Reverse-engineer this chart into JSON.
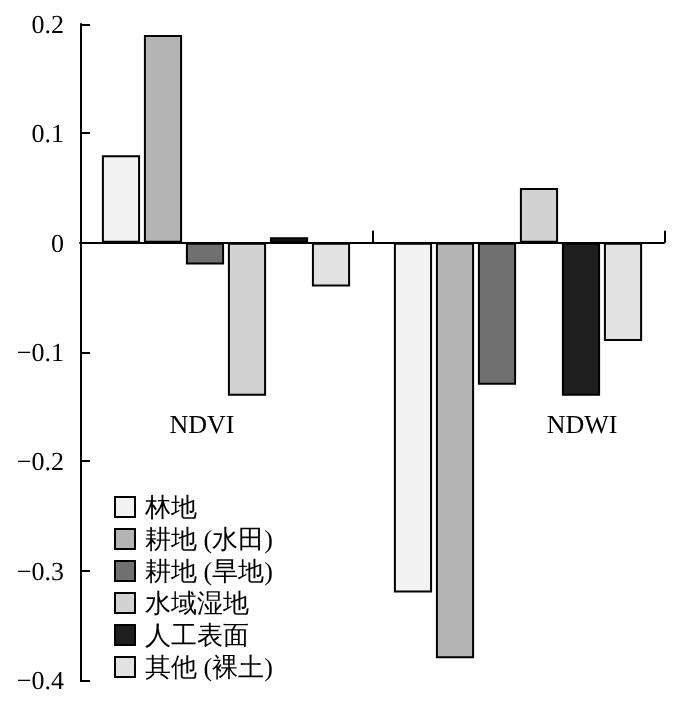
{
  "chart_data": {
    "type": "bar",
    "categories": [
      "NDVI",
      "NDWI"
    ],
    "series": [
      {
        "name": "林地",
        "color": "#f2f2f2",
        "values": [
          0.08,
          -0.32
        ]
      },
      {
        "name": "耕地 (水田)",
        "color": "#b4b4b4",
        "values": [
          0.19,
          -0.38
        ]
      },
      {
        "name": "耕地 (旱地)",
        "color": "#707070",
        "values": [
          -0.02,
          -0.13
        ]
      },
      {
        "name": "水域湿地",
        "color": "#d2d2d2",
        "values": [
          -0.14,
          0.05
        ]
      },
      {
        "name": "人工表面",
        "color": "#1e1e1e",
        "values": [
          0.005,
          -0.14
        ]
      },
      {
        "name": "其他 (裸土)",
        "color": "#e2e2e2",
        "values": [
          -0.04,
          -0.09
        ]
      }
    ],
    "ylim": [
      -0.4,
      0.2
    ],
    "yticks": [
      -0.4,
      -0.3,
      -0.2,
      -0.1,
      0,
      0.1,
      0.2
    ],
    "legend": "bottom left"
  }
}
